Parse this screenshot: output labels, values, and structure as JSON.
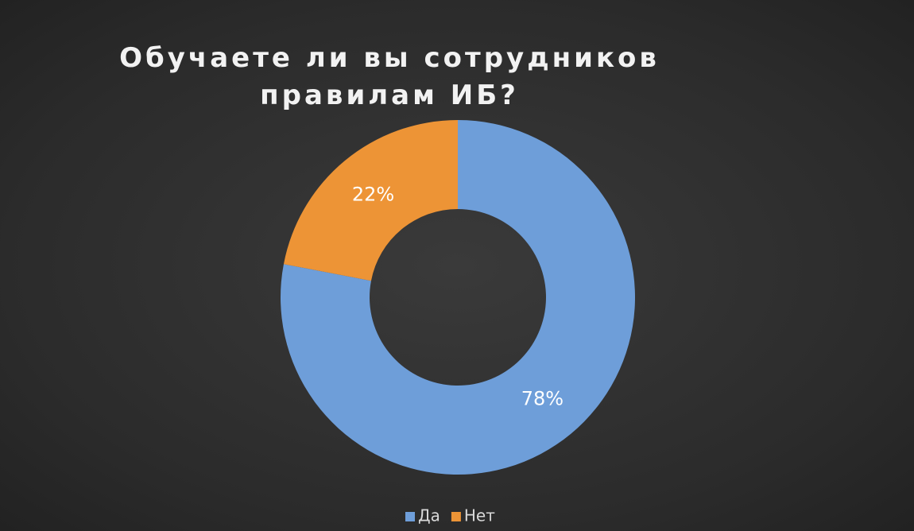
{
  "chart_data": {
    "type": "donut",
    "title": "Обучаете ли вы сотрудников правилам ИБ?",
    "categories": [
      "Да",
      "Нет"
    ],
    "values": [
      78,
      22
    ],
    "value_labels": [
      "78%",
      "22%"
    ],
    "colors": [
      "#6e9ed9",
      "#ed9436"
    ],
    "legend": "bottom"
  }
}
